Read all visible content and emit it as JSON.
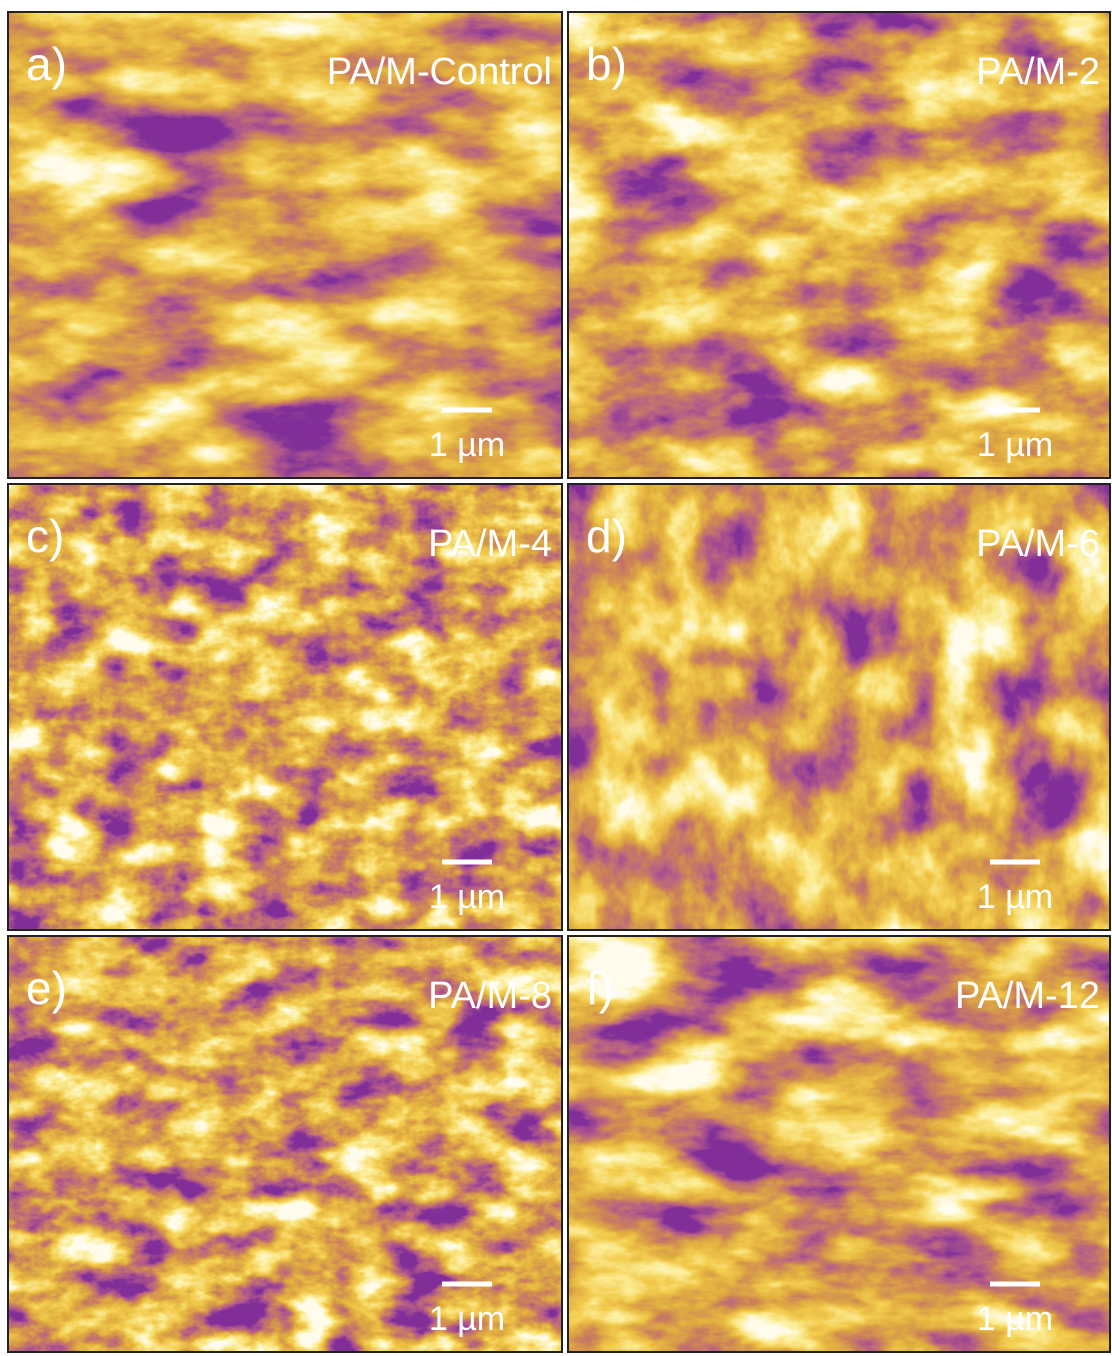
{
  "panels": [
    {
      "label": "a)",
      "name": "PA/M-Control",
      "scale": "1 µm"
    },
    {
      "label": "b)",
      "name": "PA/M-2",
      "scale": "1 µm"
    },
    {
      "label": "c)",
      "name": "PA/M-4",
      "scale": "1 µm"
    },
    {
      "label": "d)",
      "name": "PA/M-6",
      "scale": "1 µm"
    },
    {
      "label": "e)",
      "name": "PA/M-8",
      "scale": "1 µm"
    },
    {
      "label": "f)",
      "name": "PA/M-12",
      "scale": "1 µm"
    }
  ]
}
